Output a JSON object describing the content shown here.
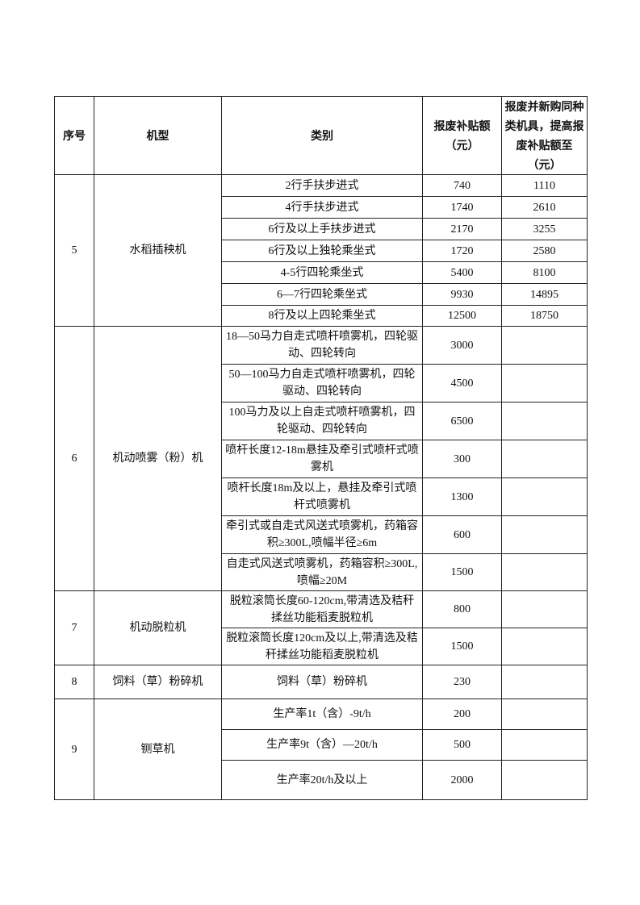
{
  "table": {
    "headers": [
      "序号",
      "机型",
      "类别",
      "报废补贴额（元）",
      "报废并新购同种类机具，提高报废补贴额至（元）"
    ],
    "groups": [
      {
        "no": "5",
        "model": "水稻插秧机",
        "rows": [
          {
            "category": "2行手扶步进式",
            "subsidy": "740",
            "raised": "1110"
          },
          {
            "category": "4行手扶步进式",
            "subsidy": "1740",
            "raised": "2610"
          },
          {
            "category": "6行及以上手扶步进式",
            "subsidy": "2170",
            "raised": "3255"
          },
          {
            "category": "6行及以上独轮乘坐式",
            "subsidy": "1720",
            "raised": "2580"
          },
          {
            "category": "4-5行四轮乘坐式",
            "subsidy": "5400",
            "raised": "8100"
          },
          {
            "category": "6—7行四轮乘坐式",
            "subsidy": "9930",
            "raised": "14895"
          },
          {
            "category": "8行及以上四轮乘坐式",
            "subsidy": "12500",
            "raised": "18750"
          }
        ]
      },
      {
        "no": "6",
        "model": "机动喷雾（粉）机",
        "rows": [
          {
            "category": "18—50马力自走式喷杆喷雾机，四轮驱动、四轮转向",
            "subsidy": "3000",
            "raised": ""
          },
          {
            "category": "50—100马力自走式喷杆喷雾机，四轮驱动、四轮转向",
            "subsidy": "4500",
            "raised": ""
          },
          {
            "category": "100马力及以上自走式喷杆喷雾机，四轮驱动、四轮转向",
            "subsidy": "6500",
            "raised": ""
          },
          {
            "category": "喷杆长度12-18m悬挂及牵引式喷杆式喷雾机",
            "subsidy": "300",
            "raised": ""
          },
          {
            "category": "喷杆长度18m及以上，悬挂及牵引式喷杆式喷雾机",
            "subsidy": "1300",
            "raised": ""
          },
          {
            "category": "牵引式或自走式风送式喷雾机，药箱容积≥300L,喷幅半径≥6m",
            "subsidy": "600",
            "raised": ""
          },
          {
            "category": "自走式风送式喷雾机，药箱容积≥300L,喷幅≥20M",
            "subsidy": "1500",
            "raised": ""
          }
        ]
      },
      {
        "no": "7",
        "model": "机动脱粒机",
        "rows": [
          {
            "category": "脱粒滚筒长度60-120cm,带清选及秸秆揉丝功能稻麦脱粒机",
            "subsidy": "800",
            "raised": ""
          },
          {
            "category": "脱粒滚筒长度120cm及以上,带清选及秸秆揉丝功能稻麦脱粒机",
            "subsidy": "1500",
            "raised": ""
          }
        ]
      },
      {
        "no": "8",
        "model": "饲料（草）粉碎机",
        "rows": [
          {
            "category": "饲料（草）粉碎机",
            "subsidy": "230",
            "raised": ""
          }
        ]
      },
      {
        "no": "9",
        "model": "铡草机",
        "rows": [
          {
            "category": "生产率1t（含）-9t/h",
            "subsidy": "200",
            "raised": ""
          },
          {
            "category": "生产率9t（含）—20t/h",
            "subsidy": "500",
            "raised": ""
          },
          {
            "category": "生产率20t/h及以上",
            "subsidy": "2000",
            "raised": ""
          }
        ]
      }
    ]
  }
}
